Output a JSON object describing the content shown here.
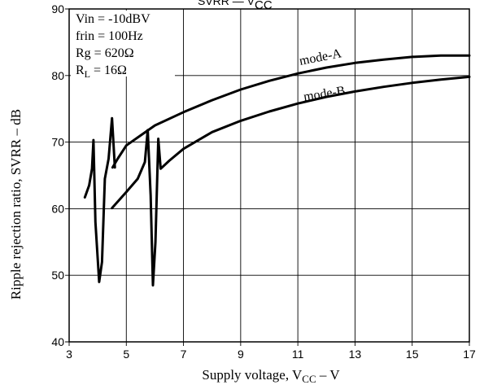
{
  "chart_data": {
    "type": "line",
    "title": "SVRR — V",
    "title_sub": "CC",
    "xlabel": "Supply voltage, V",
    "xlabel_sub": "CC",
    "xlabel_tail": " – V",
    "ylabel": "Ripple rejection ratio, SVRR – dB",
    "xlim": [
      3,
      17
    ],
    "ylim": [
      40,
      90
    ],
    "xticks": [
      "3",
      "5",
      "7",
      "9",
      "11",
      "13",
      "15",
      "17"
    ],
    "yticks": [
      "40",
      "50",
      "60",
      "70",
      "80",
      "90"
    ],
    "grid": true,
    "annotations": [
      "Vin = -10dBV",
      "frin = 100Hz",
      "Rg = 620Ω",
      "R",
      "L",
      " = 16Ω"
    ],
    "series": [
      {
        "name": "mode-A",
        "points": [
          [
            4.52,
            66.2
          ],
          [
            4.7,
            67.5
          ],
          [
            5.0,
            69.5
          ],
          [
            5.5,
            71.0
          ],
          [
            6.0,
            72.5
          ],
          [
            7.0,
            74.5
          ],
          [
            8.0,
            76.3
          ],
          [
            9.0,
            77.9
          ],
          [
            10.0,
            79.2
          ],
          [
            11.0,
            80.3
          ],
          [
            12.0,
            81.2
          ],
          [
            13.0,
            81.9
          ],
          [
            14.0,
            82.4
          ],
          [
            15.0,
            82.8
          ],
          [
            16.0,
            83.0
          ],
          [
            17.0,
            83.0
          ]
        ]
      },
      {
        "name": "mode-B",
        "points": [
          [
            4.5,
            60.1
          ],
          [
            5.0,
            62.5
          ],
          [
            5.4,
            64.5
          ],
          [
            5.65,
            67.0
          ],
          [
            5.75,
            71.8
          ],
          [
            5.85,
            62.0
          ],
          [
            5.93,
            48.5
          ],
          [
            6.02,
            55.0
          ],
          [
            6.12,
            70.5
          ],
          [
            6.2,
            66.0
          ],
          [
            6.5,
            67.2
          ],
          [
            7.0,
            69.0
          ],
          [
            8.0,
            71.5
          ],
          [
            9.0,
            73.2
          ],
          [
            10.0,
            74.6
          ],
          [
            11.0,
            75.8
          ],
          [
            12.0,
            76.8
          ],
          [
            13.0,
            77.6
          ],
          [
            14.0,
            78.3
          ],
          [
            15.0,
            78.9
          ],
          [
            16.0,
            79.4
          ],
          [
            17.0,
            79.8
          ]
        ]
      },
      {
        "name": "",
        "points": [
          [
            3.55,
            61.7
          ],
          [
            3.7,
            63.5
          ],
          [
            3.8,
            66.0
          ],
          [
            3.85,
            70.3
          ],
          [
            3.92,
            58.0
          ],
          [
            4.05,
            49.0
          ],
          [
            4.15,
            52.0
          ],
          [
            4.25,
            64.5
          ],
          [
            4.38,
            67.5
          ],
          [
            4.5,
            73.6
          ],
          [
            4.6,
            66.2
          ]
        ]
      }
    ]
  }
}
